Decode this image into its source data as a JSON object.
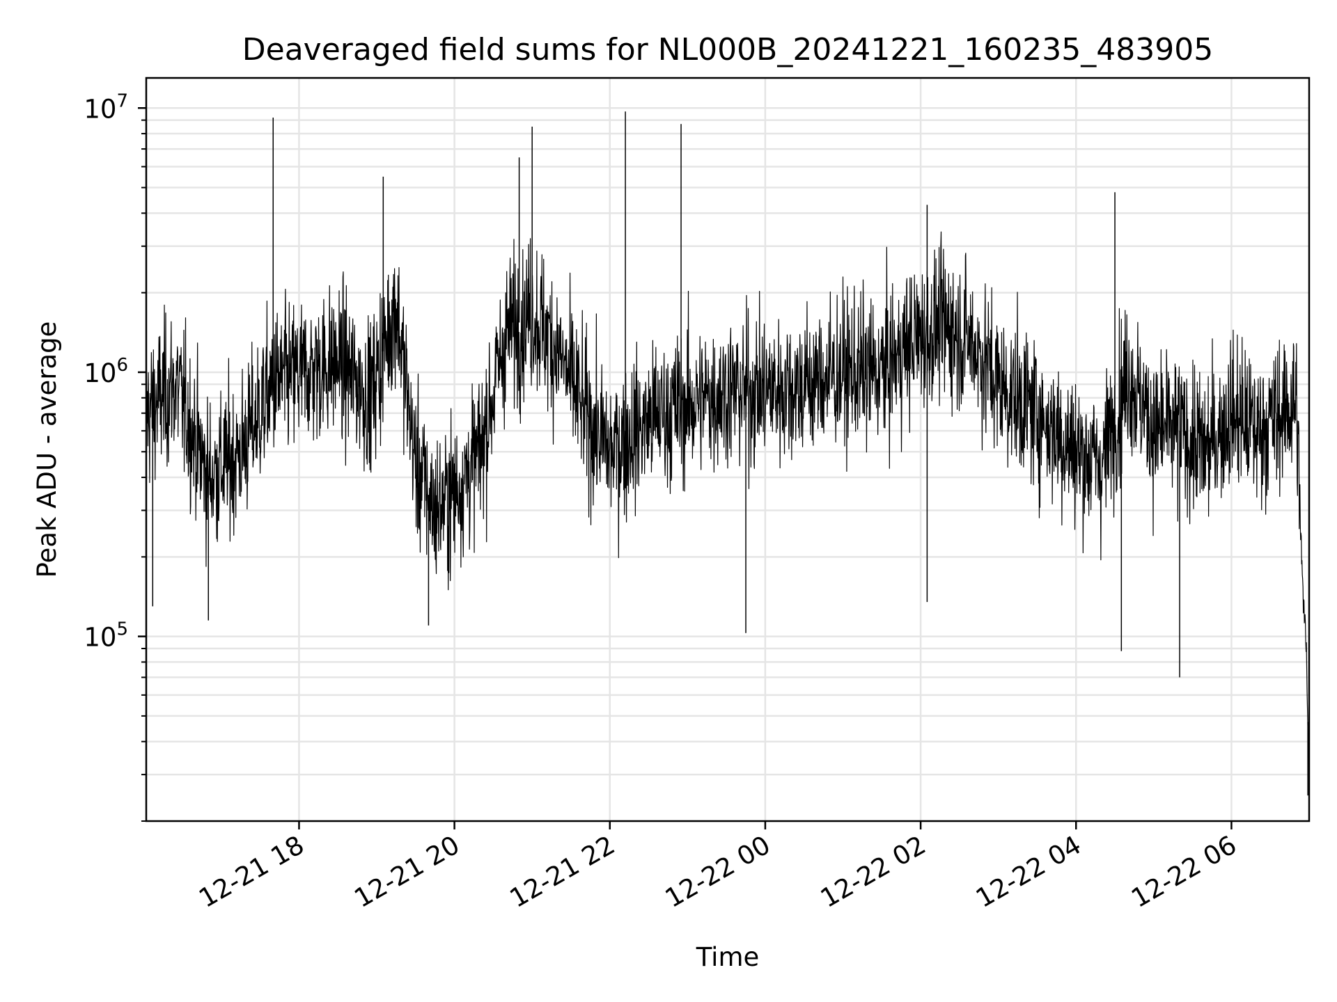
{
  "chart_data": {
    "type": "line",
    "title": "Deaveraged field sums for NL000B_20241221_160235_483905",
    "xlabel": "Time",
    "ylabel": "Peak ADU - average",
    "yscale": "log",
    "ylim": [
      20000,
      13000000
    ],
    "xlim": [
      "2024-12-21 16:02",
      "2024-12-22 07:00"
    ],
    "grid": true,
    "line_color": "#000000",
    "grid_color": "#e5e5e5",
    "x_ticks": [
      {
        "value": "2024-12-21 18:00",
        "label": "12-21 18"
      },
      {
        "value": "2024-12-21 20:00",
        "label": "12-21 20"
      },
      {
        "value": "2024-12-21 22:00",
        "label": "12-21 22"
      },
      {
        "value": "2024-12-22 00:00",
        "label": "12-22 00"
      },
      {
        "value": "2024-12-22 02:00",
        "label": "12-22 02"
      },
      {
        "value": "2024-12-22 04:00",
        "label": "12-22 04"
      },
      {
        "value": "2024-12-22 06:00",
        "label": "12-22 06"
      }
    ],
    "y_ticks": [
      {
        "value": 100000,
        "base": "10",
        "exp": "5"
      },
      {
        "value": 1000000,
        "base": "10",
        "exp": "6"
      },
      {
        "value": 10000000,
        "base": "10",
        "exp": "7"
      }
    ],
    "series": [
      {
        "x": [
          "2024-12-21 16:02",
          "2024-12-21 16:25",
          "2024-12-21 16:50",
          "2024-12-21 17:15",
          "2024-12-21 17:40",
          "2024-12-21 18:05",
          "2024-12-21 18:30",
          "2024-12-21 18:55",
          "2024-12-21 19:15",
          "2024-12-21 19:30",
          "2024-12-21 19:45",
          "2024-12-21 20:00",
          "2024-12-21 20:20",
          "2024-12-21 20:40",
          "2024-12-21 21:00",
          "2024-12-21 21:20",
          "2024-12-21 21:40",
          "2024-12-21 22:00",
          "2024-12-21 22:20",
          "2024-12-21 22:40",
          "2024-12-21 23:00",
          "2024-12-21 23:30",
          "2024-12-22 00:00",
          "2024-12-22 00:30",
          "2024-12-22 01:00",
          "2024-12-22 01:30",
          "2024-12-22 02:00",
          "2024-12-22 02:20",
          "2024-12-22 02:40",
          "2024-12-22 03:00",
          "2024-12-22 03:30",
          "2024-12-22 04:00",
          "2024-12-22 04:20",
          "2024-12-22 04:40",
          "2024-12-22 05:00",
          "2024-12-22 05:20",
          "2024-12-22 05:40",
          "2024-12-22 06:00",
          "2024-12-22 06:20",
          "2024-12-22 06:40",
          "2024-12-22 06:50",
          "2024-12-22 06:55",
          "2024-12-22 06:58",
          "2024-12-22 07:00"
        ],
        "y": [
          700000,
          900000,
          400000,
          500000,
          900000,
          1000000,
          1100000,
          800000,
          1800000,
          450000,
          300000,
          350000,
          500000,
          1400000,
          1700000,
          1200000,
          700000,
          500000,
          600000,
          700000,
          750000,
          850000,
          850000,
          900000,
          1000000,
          1000000,
          1400000,
          1500000,
          1300000,
          900000,
          700000,
          500000,
          450000,
          1000000,
          600000,
          600000,
          500000,
          700000,
          600000,
          700000,
          800000,
          150000,
          90000,
          25000
        ],
        "peaks": [
          {
            "x": "2024-12-21 17:40",
            "y": 9200000
          },
          {
            "x": "2024-12-21 19:05",
            "y": 5500000
          },
          {
            "x": "2024-12-21 20:50",
            "y": 6500000
          },
          {
            "x": "2024-12-21 21:00",
            "y": 8500000
          },
          {
            "x": "2024-12-21 22:12",
            "y": 9700000
          },
          {
            "x": "2024-12-21 22:55",
            "y": 8700000
          },
          {
            "x": "2024-12-22 02:05",
            "y": 4300000
          },
          {
            "x": "2024-12-22 04:30",
            "y": 4800000
          }
        ],
        "dips": [
          {
            "x": "2024-12-21 16:07",
            "y": 130000
          },
          {
            "x": "2024-12-21 16:50",
            "y": 115000
          },
          {
            "x": "2024-12-21 19:40",
            "y": 110000
          },
          {
            "x": "2024-12-21 23:45",
            "y": 103000
          },
          {
            "x": "2024-12-22 02:05",
            "y": 135000
          },
          {
            "x": "2024-12-22 04:35",
            "y": 88000
          },
          {
            "x": "2024-12-22 05:20",
            "y": 70000
          },
          {
            "x": "2024-12-22 06:59",
            "y": 25000
          }
        ]
      }
    ]
  }
}
